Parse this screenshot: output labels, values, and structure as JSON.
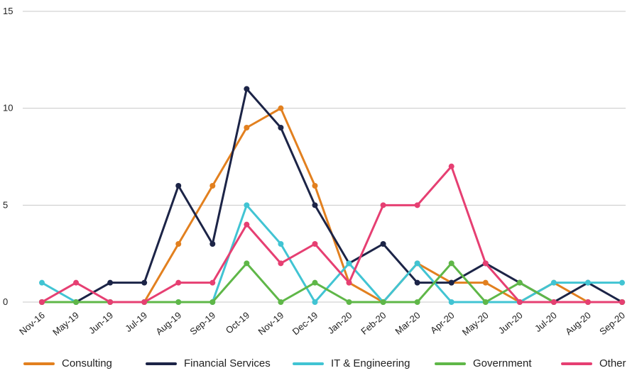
{
  "chart_data": {
    "type": "line",
    "x": [
      "Nov-16",
      "May-19",
      "Jun-19",
      "Jul-19",
      "Aug-19",
      "Sep-19",
      "Oct-19",
      "Nov-19",
      "Dec-19",
      "Jan-20",
      "Feb-20",
      "Mar-20",
      "Apr-20",
      "May-20",
      "Jun-20",
      "Jul-20",
      "Aug-20",
      "Sep-20"
    ],
    "ylim": [
      0,
      15
    ],
    "yticks": [
      0,
      5,
      10,
      15
    ],
    "grid": true,
    "legend_position": "bottom",
    "series": [
      {
        "name": "Consulting",
        "color": "#e2801f",
        "values": [
          0,
          0,
          0,
          0,
          3,
          6,
          9,
          10,
          6,
          1,
          0,
          2,
          1,
          1,
          0,
          1,
          0,
          0
        ]
      },
      {
        "name": "Financial Services",
        "color": "#1c2447",
        "values": [
          0,
          0,
          1,
          1,
          6,
          3,
          11,
          9,
          5,
          2,
          3,
          1,
          1,
          2,
          1,
          0,
          1,
          0
        ]
      },
      {
        "name": "IT & Engineering",
        "color": "#41c4d3",
        "values": [
          1,
          0,
          0,
          0,
          0,
          0,
          5,
          3,
          0,
          2,
          0,
          2,
          0,
          0,
          0,
          1,
          1,
          1
        ]
      },
      {
        "name": "Government",
        "color": "#5fb748",
        "values": [
          0,
          0,
          0,
          0,
          0,
          0,
          2,
          0,
          1,
          0,
          0,
          0,
          2,
          0,
          1,
          0,
          0,
          0
        ]
      },
      {
        "name": "Other",
        "color": "#e63f72",
        "values": [
          0,
          1,
          0,
          0,
          1,
          1,
          4,
          2,
          3,
          1,
          5,
          5,
          7,
          2,
          0,
          0,
          0,
          0
        ]
      }
    ]
  }
}
